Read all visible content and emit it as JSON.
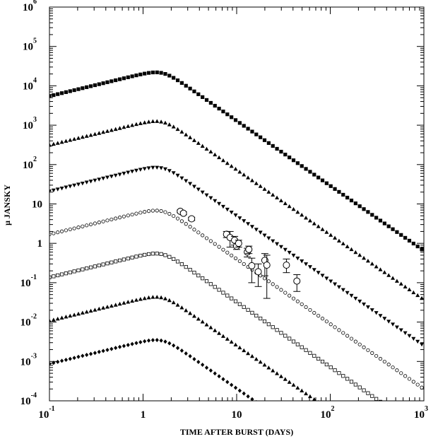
{
  "chart_data": {
    "type": "scatter",
    "xlabel": "TIME AFTER BURST (DAYS)",
    "ylabel": "μ JANSKY",
    "xscale": "log",
    "yscale": "log",
    "xlim": [
      0.1,
      1000
    ],
    "ylim": [
      0.0001,
      1000000
    ],
    "grid": false,
    "x_ticks": [
      {
        "value": 0.1,
        "base": "10",
        "exp": "-1"
      },
      {
        "value": 1,
        "base": "1",
        "exp": ""
      },
      {
        "value": 10,
        "base": "10",
        "exp": ""
      },
      {
        "value": 100,
        "base": "10",
        "exp": "2"
      },
      {
        "value": 1000,
        "base": "10",
        "exp": "3"
      }
    ],
    "y_ticks": [
      {
        "value": 0.0001,
        "base": "10",
        "exp": "-4"
      },
      {
        "value": 0.001,
        "base": "10",
        "exp": "-3"
      },
      {
        "value": 0.01,
        "base": "10",
        "exp": "-2"
      },
      {
        "value": 0.1,
        "base": "10",
        "exp": "-1"
      },
      {
        "value": 1,
        "base": "1",
        "exp": ""
      },
      {
        "value": 10,
        "base": "10",
        "exp": ""
      },
      {
        "value": 100,
        "base": "10",
        "exp": "2"
      },
      {
        "value": 1000,
        "base": "10",
        "exp": "3"
      },
      {
        "value": 10000,
        "base": "10",
        "exp": "4"
      },
      {
        "value": 100000,
        "base": "10",
        "exp": "5"
      },
      {
        "value": 1000000,
        "base": "10",
        "exp": "6"
      }
    ],
    "series": [
      {
        "marker": "square-filled",
        "peak_time": 1.6,
        "peak_flux": 22000,
        "rise_index": 0.57,
        "decay_index": 1.65,
        "t_end": 950
      },
      {
        "marker": "triangle-up-filled",
        "peak_time": 1.6,
        "peak_flux": 1250,
        "rise_index": 0.57,
        "decay_index": 1.65,
        "t_end": 950
      },
      {
        "marker": "triangle-down-filled",
        "peak_time": 1.6,
        "peak_flux": 85,
        "rise_index": 0.57,
        "decay_index": 1.65,
        "t_end": 950
      },
      {
        "marker": "circle-open",
        "peak_time": 1.6,
        "peak_flux": 6.8,
        "rise_index": 0.57,
        "decay_index": 1.65,
        "t_end": 950
      },
      {
        "marker": "square-open",
        "peak_time": 1.6,
        "peak_flux": 0.55,
        "rise_index": 0.57,
        "decay_index": 1.65,
        "t_end": 950
      },
      {
        "marker": "triangle-up-filled",
        "peak_time": 1.6,
        "peak_flux": 0.043,
        "rise_index": 0.57,
        "decay_index": 1.65,
        "t_end": 950
      },
      {
        "marker": "diamond-filled",
        "peak_time": 1.6,
        "peak_flux": 0.0035,
        "rise_index": 0.57,
        "decay_index": 1.65,
        "t_end": 950
      }
    ],
    "observations": [
      {
        "x": 2.5,
        "y": 6.5,
        "err_lo": 6.0,
        "err_hi": 7.0
      },
      {
        "x": 2.7,
        "y": 5.8,
        "err_lo": 5.3,
        "err_hi": 6.3
      },
      {
        "x": 3.3,
        "y": 4.2,
        "err_lo": 3.8,
        "err_hi": 4.6
      },
      {
        "x": 7.8,
        "y": 1.7,
        "err_lo": 1.4,
        "err_hi": 2.0
      },
      {
        "x": 8.5,
        "y": 1.4,
        "err_lo": 0.8,
        "err_hi": 2.0
      },
      {
        "x": 9.5,
        "y": 1.2,
        "err_lo": 0.9,
        "err_hi": 1.5
      },
      {
        "x": 10.0,
        "y": 0.85,
        "err_lo": 0.7,
        "err_hi": 1.0
      },
      {
        "x": 10.5,
        "y": 1.0,
        "err_lo": 0.8,
        "err_hi": 1.2
      },
      {
        "x": 13.0,
        "y": 0.6,
        "err_lo": 0.45,
        "err_hi": 0.75
      },
      {
        "x": 13.5,
        "y": 0.7,
        "err_lo": 0.55,
        "err_hi": 0.85
      },
      {
        "x": 14.5,
        "y": 0.27,
        "err_lo": 0.1,
        "err_hi": 0.42
      },
      {
        "x": 17.0,
        "y": 0.19,
        "err_lo": 0.08,
        "err_hi": 0.3
      },
      {
        "x": 20.0,
        "y": 0.37,
        "err_lo": 0.15,
        "err_hi": 0.55
      },
      {
        "x": 21.0,
        "y": 0.28,
        "err_lo": 0.04,
        "err_hi": 0.5
      },
      {
        "x": 34.0,
        "y": 0.28,
        "err_lo": 0.18,
        "err_hi": 0.4
      },
      {
        "x": 44.0,
        "y": 0.11,
        "err_lo": 0.06,
        "err_hi": 0.16
      }
    ]
  }
}
